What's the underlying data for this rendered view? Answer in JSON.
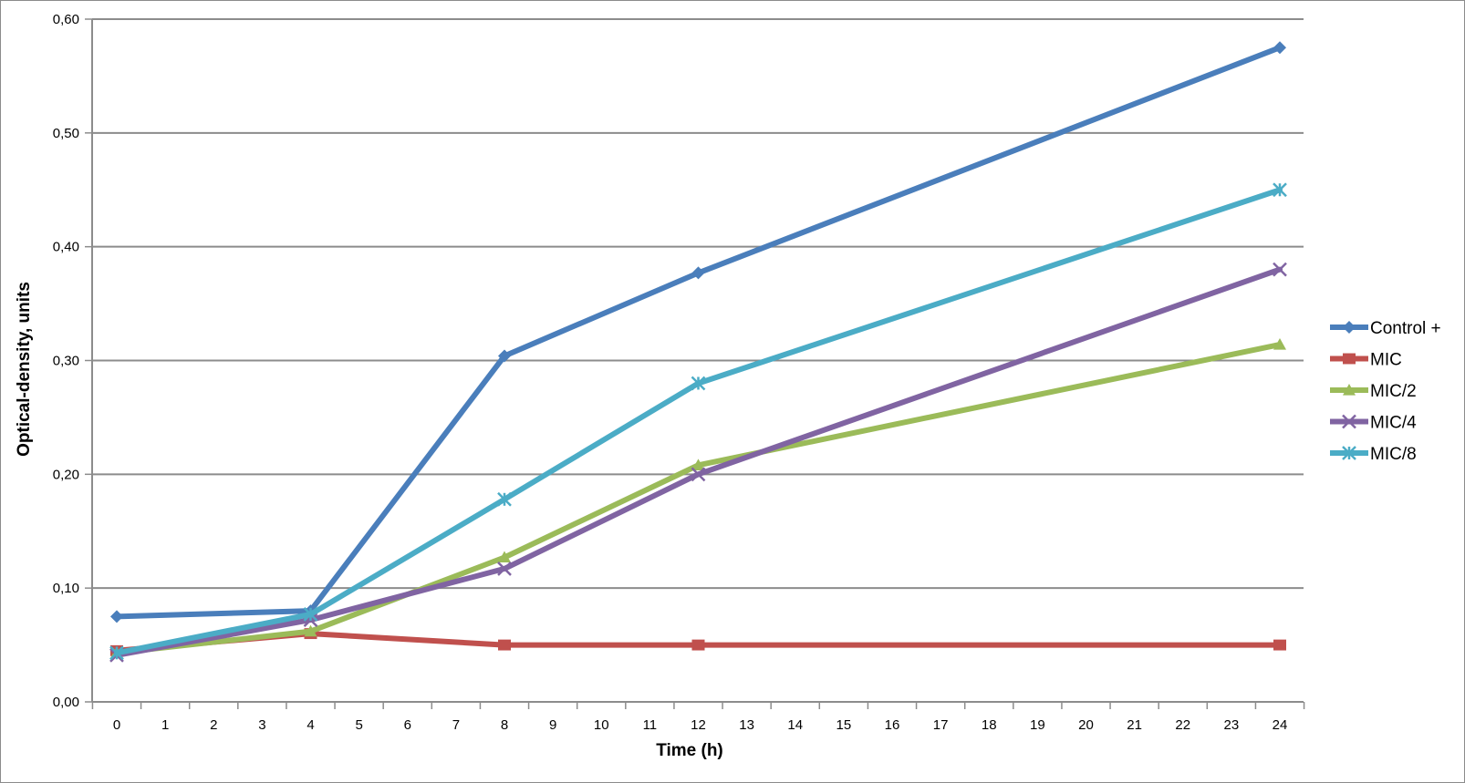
{
  "chart_data": {
    "type": "line",
    "title": "",
    "xlabel": "Time (h)",
    "ylabel": "Optical-density,  units",
    "xlim": [
      0,
      24
    ],
    "ylim": [
      0,
      0.6
    ],
    "x_ticks": [
      "0",
      "1",
      "2",
      "3",
      "4",
      "5",
      "6",
      "7",
      "8",
      "9",
      "10",
      "11",
      "12",
      "13",
      "14",
      "15",
      "16",
      "17",
      "18",
      "19",
      "20",
      "21",
      "22",
      "23",
      "24"
    ],
    "y_ticks": [
      "0,00",
      "0,10",
      "0,20",
      "0,30",
      "0,40",
      "0,50",
      "0,60"
    ],
    "grid": true,
    "legend_position": "right",
    "x": [
      0,
      4,
      8,
      12,
      24
    ],
    "series": [
      {
        "name": "Control +",
        "color": "#4a7ebb",
        "marker": "diamond",
        "values": [
          0.075,
          0.08,
          0.304,
          0.377,
          0.575
        ]
      },
      {
        "name": "MIC",
        "color": "#c0504d",
        "marker": "square",
        "values": [
          0.045,
          0.06,
          0.05,
          0.05,
          0.05
        ]
      },
      {
        "name": "MIC/2",
        "color": "#9bbb59",
        "marker": "triangle",
        "values": [
          0.043,
          0.062,
          0.127,
          0.208,
          0.314
        ]
      },
      {
        "name": "MIC/4",
        "color": "#8064a2",
        "marker": "x",
        "values": [
          0.041,
          0.072,
          0.117,
          0.2,
          0.38
        ]
      },
      {
        "name": "MIC/8",
        "color": "#4bacc6",
        "marker": "star",
        "values": [
          0.043,
          0.077,
          0.178,
          0.28,
          0.45
        ]
      }
    ]
  }
}
